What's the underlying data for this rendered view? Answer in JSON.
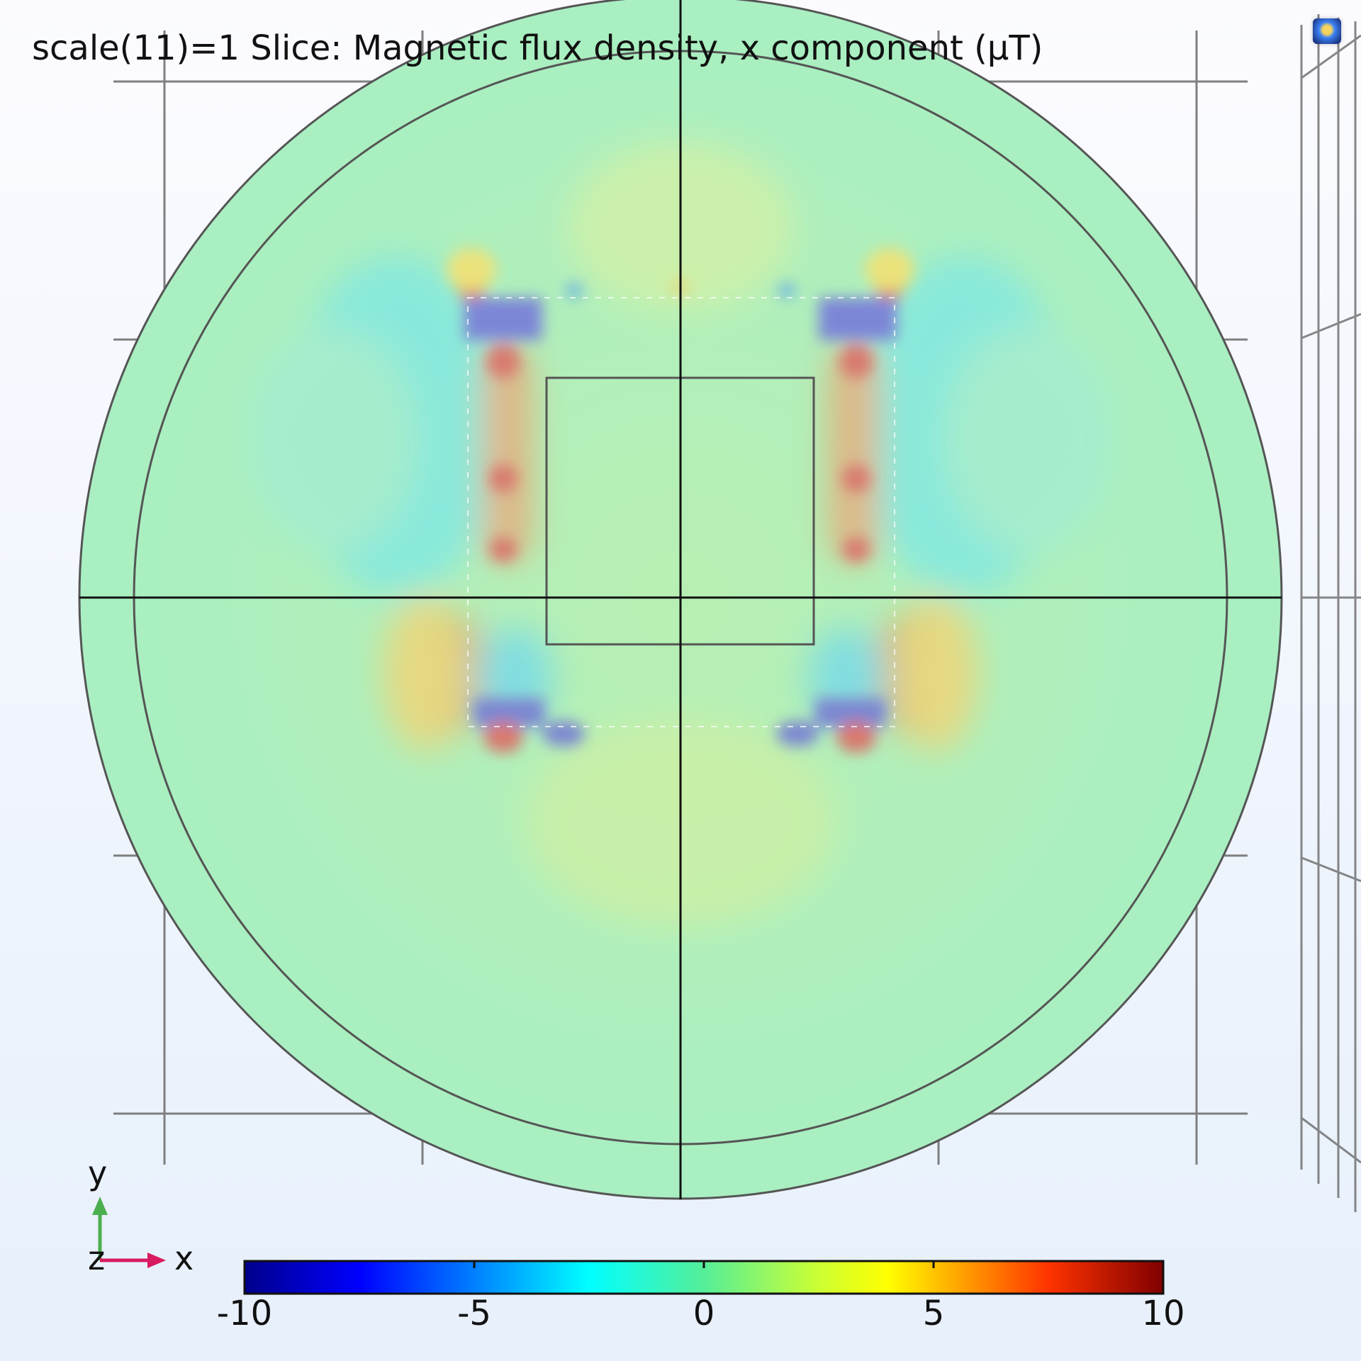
{
  "plot": {
    "title": "scale(11)=1 Slice: Magnetic flux density, x component (μT)"
  },
  "triad": {
    "y": "y",
    "x": "x",
    "z": "z",
    "y_color": "#4caf50",
    "x_color": "#d81b60"
  },
  "colorbar": {
    "min": -10,
    "max": 10,
    "ticks": [
      "-10",
      "-5",
      "0",
      "5",
      "10"
    ],
    "colormap": "rainbow"
  },
  "colors": {
    "background_top": "#fbfbff",
    "background_bottom": "#e7f0fb",
    "field_base": "#a8f0c0",
    "grid_line": "#555555"
  },
  "icons": {
    "corner": "graphics-window-icon"
  }
}
